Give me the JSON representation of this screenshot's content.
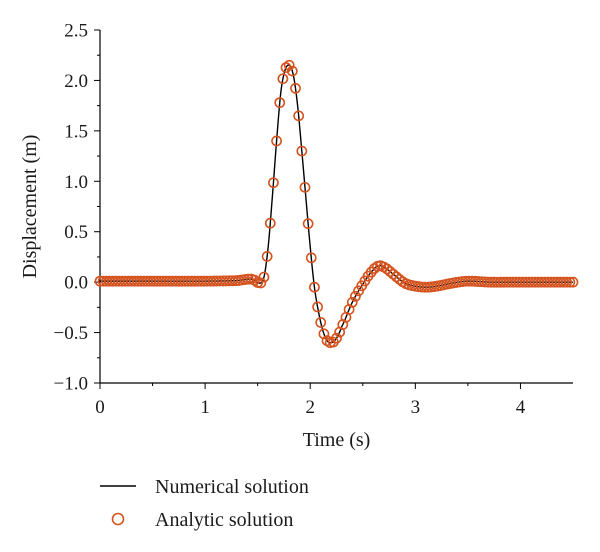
{
  "chart_data": {
    "type": "line",
    "xlabel": "Time (s)",
    "ylabel": "Displacement (m)",
    "xlim": [
      0,
      4.5
    ],
    "ylim": [
      -1.0,
      2.5
    ],
    "x_ticks": [
      "0",
      "1",
      "2",
      "3",
      "4"
    ],
    "y_ticks": [
      "2.5",
      "2.0",
      "1.5",
      "1.0",
      "0.5",
      "0.0",
      "−0.5",
      "−1.0"
    ],
    "grid": false,
    "legend_position": "bottom",
    "series": [
      {
        "name": "Numerical solution",
        "style": "line",
        "color": "#000000",
        "x": [
          0,
          0.5,
          1.0,
          1.3,
          1.45,
          1.52,
          1.56,
          1.6,
          1.64,
          1.68,
          1.72,
          1.76,
          1.8,
          1.84,
          1.88,
          1.92,
          1.96,
          2.0,
          2.04,
          2.08,
          2.12,
          2.16,
          2.2,
          2.24,
          2.3,
          2.4,
          2.5,
          2.6,
          2.65,
          2.7,
          2.8,
          2.9,
          3.0,
          3.1,
          3.2,
          3.35,
          3.5,
          3.7,
          3.9,
          4.1,
          4.3,
          4.5
        ],
        "y": [
          0.01,
          0.01,
          0.01,
          0.015,
          0.03,
          -0.01,
          0.05,
          0.35,
          0.85,
          1.4,
          1.88,
          2.1,
          2.15,
          2.05,
          1.75,
          1.3,
          0.82,
          0.35,
          -0.05,
          -0.3,
          -0.48,
          -0.58,
          -0.6,
          -0.57,
          -0.44,
          -0.2,
          -0.02,
          0.12,
          0.16,
          0.15,
          0.07,
          -0.01,
          -0.04,
          -0.05,
          -0.04,
          -0.01,
          0.01,
          0.0,
          0.0,
          0.0,
          0.0,
          0.0
        ]
      },
      {
        "name": "Analytic solution",
        "style": "markers",
        "marker": "open-circle",
        "color": "#d4531f",
        "x": [
          0,
          0.5,
          1.0,
          1.3,
          1.45,
          1.52,
          1.56,
          1.6,
          1.64,
          1.68,
          1.72,
          1.76,
          1.8,
          1.84,
          1.88,
          1.92,
          1.96,
          2.0,
          2.04,
          2.08,
          2.12,
          2.16,
          2.2,
          2.24,
          2.3,
          2.4,
          2.5,
          2.6,
          2.65,
          2.7,
          2.8,
          2.9,
          3.0,
          3.1,
          3.2,
          3.35,
          3.5,
          3.7,
          3.9,
          4.1,
          4.3,
          4.5
        ],
        "y": [
          0.01,
          0.01,
          0.01,
          0.015,
          0.03,
          -0.01,
          0.05,
          0.35,
          0.85,
          1.4,
          1.88,
          2.1,
          2.15,
          2.05,
          1.75,
          1.3,
          0.82,
          0.35,
          -0.05,
          -0.3,
          -0.48,
          -0.58,
          -0.6,
          -0.57,
          -0.44,
          -0.2,
          -0.02,
          0.12,
          0.16,
          0.15,
          0.07,
          -0.01,
          -0.04,
          -0.05,
          -0.04,
          -0.01,
          0.01,
          0.0,
          0.0,
          0.0,
          0.0,
          0.0
        ]
      }
    ]
  }
}
